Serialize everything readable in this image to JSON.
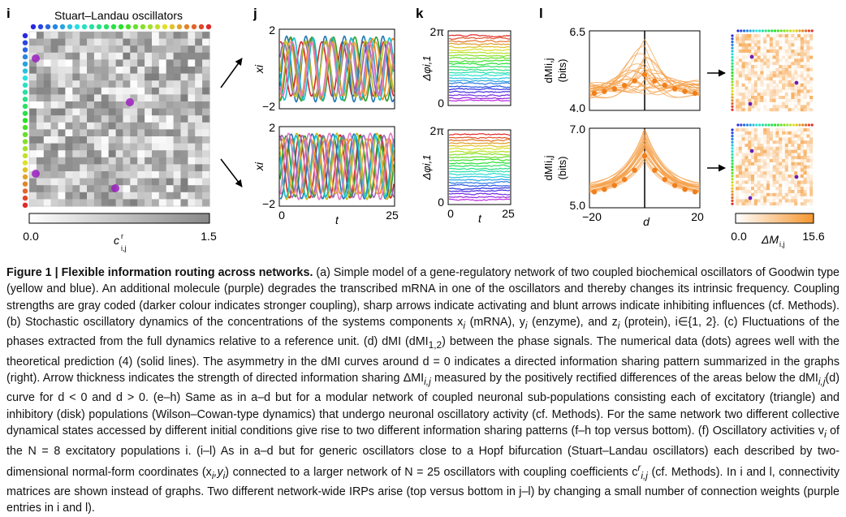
{
  "panels": {
    "i": {
      "letter": "i",
      "title": "Stuart–Landau oscillators",
      "colorbar_min": "0.0",
      "colorbar_max": "1.5",
      "colorbar_label": "c",
      "colorbar_sup": "r",
      "colorbar_sub": "i,j"
    },
    "j": {
      "letter": "j",
      "ylabel": "x",
      "ylabel_sub": "i",
      "yticks": [
        "2",
        "−2"
      ],
      "xticks": [
        "0",
        "25"
      ],
      "xlabel": "t"
    },
    "k": {
      "letter": "k",
      "ylabel": "Δφ",
      "ylabel_sub": "i,1",
      "yticks": [
        "2π",
        "0"
      ],
      "xticks": [
        "0",
        "25"
      ],
      "xlabel": "t"
    },
    "l": {
      "letter": "l",
      "top_ylabel": "dMI",
      "top_ylabel_sub": "i,j",
      "top_yunit": "(bits)",
      "top_yticks": [
        "6.5",
        "4.0"
      ],
      "bottom_yticks": [
        "7.0",
        "5.0"
      ],
      "xticks": [
        "−20",
        "20"
      ],
      "xlabel": "d",
      "colorbar_min": "0.0",
      "colorbar_max": "15.6",
      "colorbar_label": "ΔM",
      "colorbar_sub": "i,j"
    }
  },
  "caption": {
    "figure_label": "Figure 1 | Flexible information routing across networks.",
    "p1": " (a) Simple model of a gene-regulatory network of two coupled biochemical oscillators of Goodwin type (yellow and blue). An additional molecule (purple) degrades the transcribed mRNA in one of the oscillators and thereby changes its intrinsic frequency. Coupling strengths are gray coded (darker colour indicates stronger coupling), sharp arrows indicate activating and blunt arrows indicate inhibiting influences (cf. Methods). (b) Stochastic oscillatory dynamics of the concentrations of the systems components x",
    "p2": " (mRNA), y",
    "p3": " (enzyme), and z",
    "p4": " (protein), i∈{1, 2}. (c) Fluctuations of the phases extracted from the full dynamics relative to a reference unit. (d) dMI (dMI",
    "p5": ") between the phase signals. The numerical data (dots) agrees well with the theoretical prediction (4) (solid lines). The asymmetry in the dMI curves around d = 0 indicates a directed information sharing pattern summarized in the graphs (right). Arrow thickness indicates the strength of directed information sharing ΔMI",
    "p6": " measured by the positively rectified differences of the areas below the dMI",
    "p7": "(d) curve for d < 0 and d > 0. (e–h) Same as in a–d but for a modular network of coupled neuronal sub-populations consisting each of excitatory (triangle) and inhibitory (disk) populations (Wilson–Cowan-type dynamics) that undergo neuronal oscillatory activity (cf. Methods). For the same network two different collective dynamical states accessed by different initial conditions give rise to two different information sharing patterns (f–h top versus bottom). (f) Oscillatory activities v",
    "p8": " of the N = 8 excitatory populations i. (i–l) As in a–d but for generic oscillators close to a Hopf bifurcation (Stuart–Landau oscillators) each described by two-dimensional normal-form coordinates (x",
    "p9": ") connected to a larger network of N = 25 oscillators with coupling coefficients c",
    "p10": " (cf. Methods). In i and l, connectivity matrices are shown instead of graphs. Two different network-wide IRPs arise (top versus bottom in j–l) by changing a small number of connection weights (purple entries in i and l)."
  }
}
